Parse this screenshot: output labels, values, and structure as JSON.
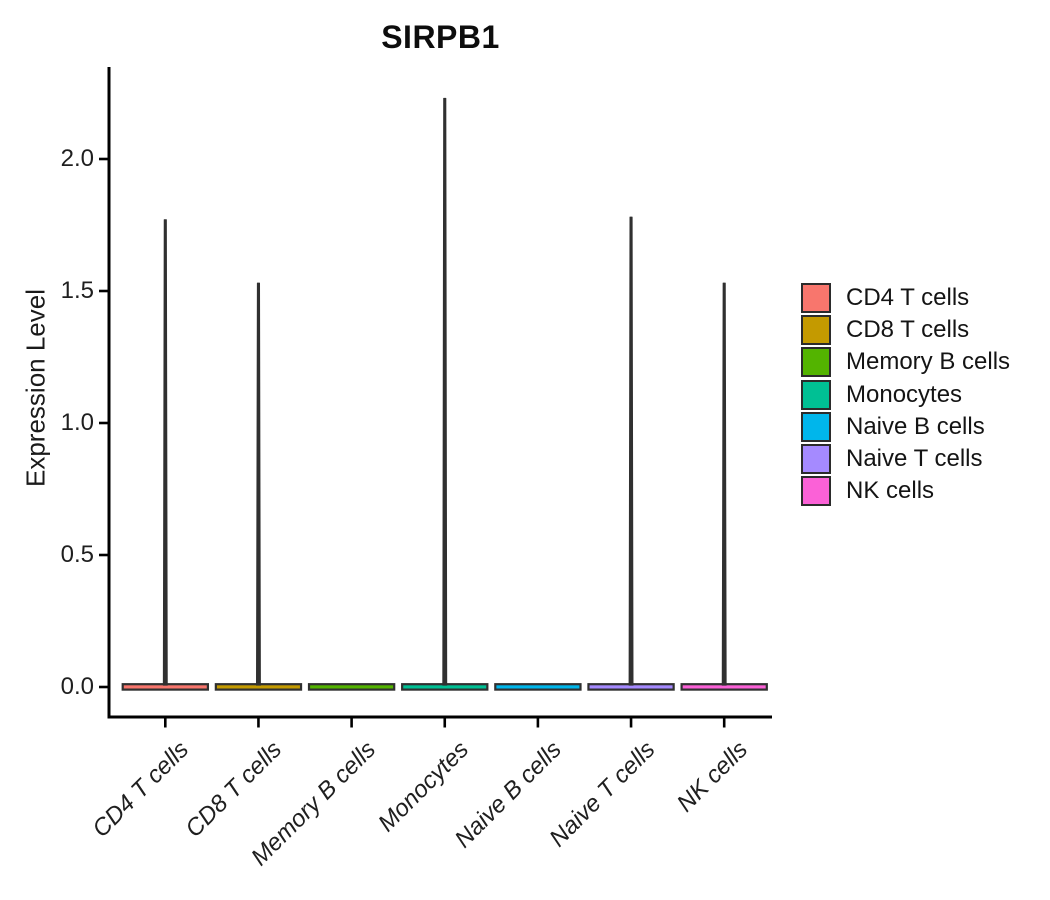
{
  "title": "SIRPB1",
  "axes": {
    "y_label": "Expression Level",
    "y_ticks": [
      "0.0",
      "0.5",
      "1.0",
      "1.5",
      "2.0"
    ],
    "x_categories": [
      "CD4 T cells",
      "CD8 T cells",
      "Memory B cells",
      "Monocytes",
      "Naive B cells",
      "Naive T cells",
      "NK cells"
    ]
  },
  "legend": {
    "position": "right",
    "items": [
      {
        "label": "CD4 T cells",
        "color": "#F8766D"
      },
      {
        "label": "CD8 T cells",
        "color": "#C49A00"
      },
      {
        "label": "Memory B cells",
        "color": "#53B400"
      },
      {
        "label": "Monocytes",
        "color": "#00C094"
      },
      {
        "label": "Naive B cells",
        "color": "#00B6EB"
      },
      {
        "label": "Naive T cells",
        "color": "#A58AFF"
      },
      {
        "label": "NK cells",
        "color": "#FB61D7"
      }
    ]
  },
  "chart_data": {
    "type": "violin",
    "title": "SIRPB1",
    "xlabel": "",
    "ylabel": "Expression Level",
    "categories": [
      "CD4 T cells",
      "CD8 T cells",
      "Memory B cells",
      "Monocytes",
      "Naive B cells",
      "Naive T cells",
      "NK cells"
    ],
    "series": [
      {
        "name": "CD4 T cells",
        "color": "#F8766D",
        "density_peak_at": 0,
        "max_expression": 1.77
      },
      {
        "name": "CD8 T cells",
        "color": "#C49A00",
        "density_peak_at": 0,
        "max_expression": 1.53
      },
      {
        "name": "Memory B cells",
        "color": "#53B400",
        "density_peak_at": 0,
        "max_expression": 0
      },
      {
        "name": "Monocytes",
        "color": "#00C094",
        "density_peak_at": 0,
        "max_expression": 2.23
      },
      {
        "name": "Naive B cells",
        "color": "#00B6EB",
        "density_peak_at": 0,
        "max_expression": 0
      },
      {
        "name": "Naive T cells",
        "color": "#A58AFF",
        "density_peak_at": 0,
        "max_expression": 1.78
      },
      {
        "name": "NK cells",
        "color": "#FB61D7",
        "density_peak_at": 0,
        "max_expression": 1.53
      }
    ],
    "yticks": [
      0,
      0.5,
      1,
      1.5,
      2
    ],
    "ylim": [
      0,
      2.35
    ],
    "grid": false,
    "legend_position": "right",
    "shape_hint": "violins collapsed to flat bar at 0 with thin vertical spike up to max expression",
    "outline_color": "#303030"
  }
}
